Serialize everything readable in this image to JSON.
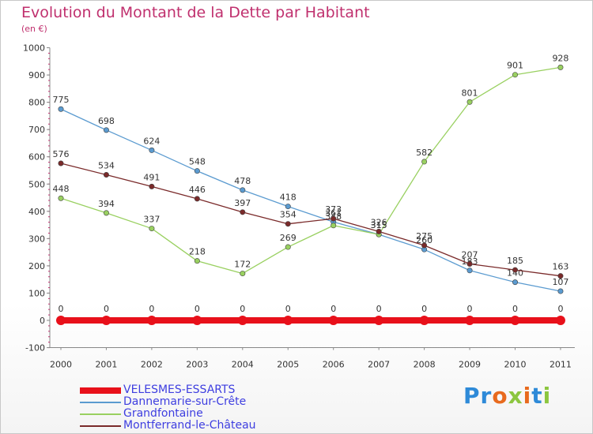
{
  "header": {
    "title": "Evolution du Montant de la Dette par Habitant",
    "subtitle": "(en €)"
  },
  "logo": {
    "text": "Proxiti"
  },
  "chart_data": {
    "type": "line",
    "title": "Evolution du Montant de la Dette par Habitant",
    "subtitle": "(en €)",
    "x": [
      "2000",
      "2001",
      "2002",
      "2003",
      "2004",
      "2005",
      "2006",
      "2007",
      "2008",
      "2009",
      "2010",
      "2011"
    ],
    "ylim": [
      -100,
      1000
    ],
    "yticks": [
      "-100",
      "0",
      "100",
      "200",
      "300",
      "400",
      "500",
      "600",
      "700",
      "800",
      "900",
      "1000"
    ],
    "grid": false,
    "legend_position": "bottom-left",
    "series": [
      {
        "name": "VELESMES-ESSARTS",
        "color": "#e8101a",
        "values": [
          0,
          0,
          0,
          0,
          0,
          0,
          0,
          0,
          0,
          0,
          0,
          0
        ],
        "labels": [
          "0",
          "0",
          "0",
          "0",
          "0",
          "0",
          "0",
          "0",
          "0",
          "0",
          "0",
          "0"
        ]
      },
      {
        "name": "Dannemarie-sur-Crête",
        "color": "#5b9bd0",
        "values": [
          775,
          698,
          624,
          548,
          478,
          418,
          361,
          315,
          260,
          183,
          140,
          107
        ],
        "labels": [
          "775",
          "698",
          "624",
          "548",
          "478",
          "418",
          "361",
          "315",
          "260",
          "183",
          "140",
          "107"
        ]
      },
      {
        "name": "Grandfontaine",
        "color": "#99d060",
        "values": [
          448,
          394,
          337,
          218,
          172,
          269,
          348,
          315,
          582,
          801,
          901,
          928
        ],
        "labels": [
          "448",
          "394",
          "337",
          "218",
          "172",
          "269",
          "348",
          "315",
          "582",
          "801",
          "901",
          "928"
        ]
      },
      {
        "name": "Montferrand-le-Château",
        "color": "#7a2a2a",
        "values": [
          576,
          534,
          491,
          446,
          397,
          354,
          373,
          326,
          275,
          207,
          185,
          163
        ],
        "labels": [
          "576",
          "534",
          "491",
          "446",
          "397",
          "354",
          "373",
          "326",
          "275",
          "207",
          "185",
          "163"
        ]
      }
    ]
  }
}
